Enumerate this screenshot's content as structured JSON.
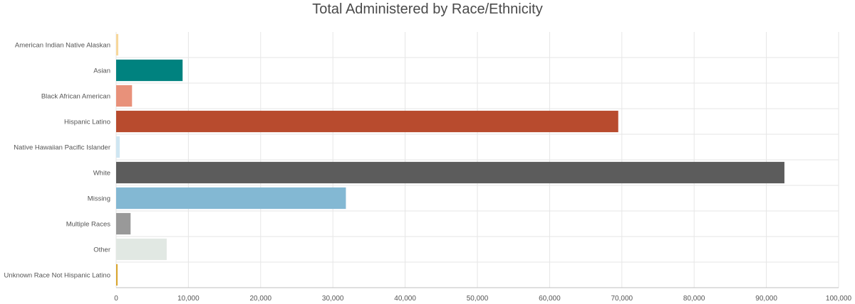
{
  "chart_data": {
    "type": "bar",
    "orientation": "horizontal",
    "title": "Total Administered by Race/Ethnicity",
    "xlabel": "",
    "ylabel": "",
    "xlim": [
      0,
      100000
    ],
    "x_ticks": [
      "0",
      "10,000",
      "20,000",
      "30,000",
      "40,000",
      "50,000",
      "60,000",
      "70,000",
      "80,000",
      "90,000",
      "100,000"
    ],
    "grid": true,
    "categories": [
      "American Indian Native Alaskan",
      "Asian",
      "Black African American",
      "Hispanic Latino",
      "Native Hawaiian Pacific Islander",
      "White",
      "Missing",
      "Multiple Races",
      "Other",
      "Unknown Race Not Hispanic Latino"
    ],
    "values": [
      300,
      9200,
      2200,
      69500,
      500,
      92500,
      31800,
      2000,
      7000,
      200
    ],
    "colors": [
      "#f7d79b",
      "#00827f",
      "#e8917a",
      "#b84b2e",
      "#cfe6f2",
      "#5c5c5c",
      "#83b8d3",
      "#999999",
      "#e1e8e3",
      "#d9a52b"
    ]
  }
}
